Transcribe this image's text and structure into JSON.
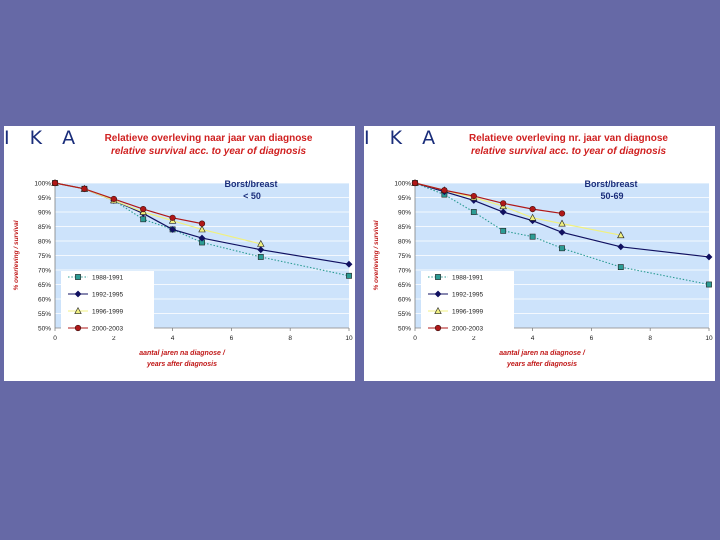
{
  "colors": {
    "background": "#6669a6",
    "plot_area": "#cde3fb",
    "title_red": "#d02020",
    "axis_label_red": "#c01818",
    "logo_blue": "#1a2d7a",
    "series_1988_1991": "#2c9c94",
    "series_1992_1995": "#101060",
    "series_1996_1999": "#f0f080",
    "series_2000_2003": "#b01818"
  },
  "panels": [
    {
      "logo": "I K A",
      "title_nl": "Relatieve overleving naar jaar van diagnose",
      "title_en": "relative survival acc. to year of diagnosis",
      "ylabel": "% overleving / survival",
      "xlabel_nl": "aantal jaren na diagnose /",
      "xlabel_en": "years after diagnosis",
      "chart_data": {
        "type": "line",
        "title": "Borst/breast",
        "subtitle": "< 50",
        "x_ticks": [
          0,
          2,
          4,
          6,
          8,
          10
        ],
        "y_ticks": [
          "100%",
          "95%",
          "90%",
          "85%",
          "80%",
          "75%",
          "70%",
          "65%",
          "60%",
          "55%",
          "50%"
        ],
        "xlim": [
          0,
          10
        ],
        "ylim": [
          50,
          100
        ],
        "legend_position": "left",
        "series": [
          {
            "name": "1988-1991",
            "color": "#2c9c94",
            "marker": "square",
            "dotted": true,
            "points": [
              [
                0,
                100
              ],
              [
                1,
                98
              ],
              [
                2,
                94
              ],
              [
                3,
                87.5
              ],
              [
                4,
                84
              ],
              [
                5,
                79.5
              ],
              [
                7,
                74.5
              ],
              [
                10,
                68
              ]
            ]
          },
          {
            "name": "1992-1995",
            "color": "#101060",
            "marker": "diamond",
            "dotted": false,
            "points": [
              [
                0,
                100
              ],
              [
                1,
                98
              ],
              [
                2,
                94
              ],
              [
                3,
                89.5
              ],
              [
                4,
                84
              ],
              [
                5,
                81
              ],
              [
                7,
                77
              ],
              [
                10,
                72
              ]
            ]
          },
          {
            "name": "1996-1999",
            "color": "#f0f080",
            "marker": "triangle",
            "dotted": false,
            "points": [
              [
                0,
                100
              ],
              [
                1,
                98
              ],
              [
                2,
                94
              ],
              [
                3,
                90
              ],
              [
                4,
                87
              ],
              [
                5,
                84
              ],
              [
                7,
                79
              ]
            ]
          },
          {
            "name": "2000-2003",
            "color": "#b01818",
            "marker": "circle",
            "dotted": false,
            "points": [
              [
                0,
                100
              ],
              [
                1,
                98
              ],
              [
                2,
                94.5
              ],
              [
                3,
                91
              ],
              [
                4,
                88
              ],
              [
                5,
                86
              ]
            ]
          }
        ]
      }
    },
    {
      "logo": "I K A",
      "title_nl": "Relatieve overleving nr. jaar van diagnose",
      "title_en": "relative survival acc. to year of diagnosis",
      "ylabel": "% overleving / survival",
      "xlabel_nl": "aantal jaren na diagnose /",
      "xlabel_en": "years after diagnosis",
      "chart_data": {
        "type": "line",
        "title": "Borst/breast",
        "subtitle": "50-69",
        "x_ticks": [
          0,
          2,
          4,
          6,
          8,
          10
        ],
        "y_ticks": [
          "100%",
          "95%",
          "90%",
          "85%",
          "80%",
          "75%",
          "70%",
          "65%",
          "60%",
          "55%",
          "50%"
        ],
        "xlim": [
          0,
          10
        ],
        "ylim": [
          50,
          100
        ],
        "legend_position": "left",
        "series": [
          {
            "name": "1988-1991",
            "color": "#2c9c94",
            "marker": "square",
            "dotted": true,
            "points": [
              [
                0,
                100
              ],
              [
                1,
                96
              ],
              [
                2,
                90
              ],
              [
                3,
                83.5
              ],
              [
                4,
                81.5
              ],
              [
                5,
                77.5
              ],
              [
                7,
                71
              ],
              [
                10,
                65
              ]
            ]
          },
          {
            "name": "1992-1995",
            "color": "#101060",
            "marker": "diamond",
            "dotted": false,
            "points": [
              [
                0,
                100
              ],
              [
                1,
                97
              ],
              [
                2,
                94
              ],
              [
                3,
                90
              ],
              [
                4,
                87
              ],
              [
                5,
                83
              ],
              [
                7,
                78
              ],
              [
                10,
                74.5
              ]
            ]
          },
          {
            "name": "1996-1999",
            "color": "#f0f080",
            "marker": "triangle",
            "dotted": false,
            "points": [
              [
                0,
                100
              ],
              [
                1,
                97.5
              ],
              [
                2,
                95
              ],
              [
                3,
                92
              ],
              [
                4,
                88
              ],
              [
                5,
                86
              ],
              [
                7,
                82
              ]
            ]
          },
          {
            "name": "2000-2003",
            "color": "#b01818",
            "marker": "circle",
            "dotted": false,
            "points": [
              [
                0,
                100
              ],
              [
                1,
                97.5
              ],
              [
                2,
                95.5
              ],
              [
                3,
                93
              ],
              [
                4,
                91
              ],
              [
                5,
                89.5
              ]
            ]
          }
        ]
      }
    }
  ]
}
